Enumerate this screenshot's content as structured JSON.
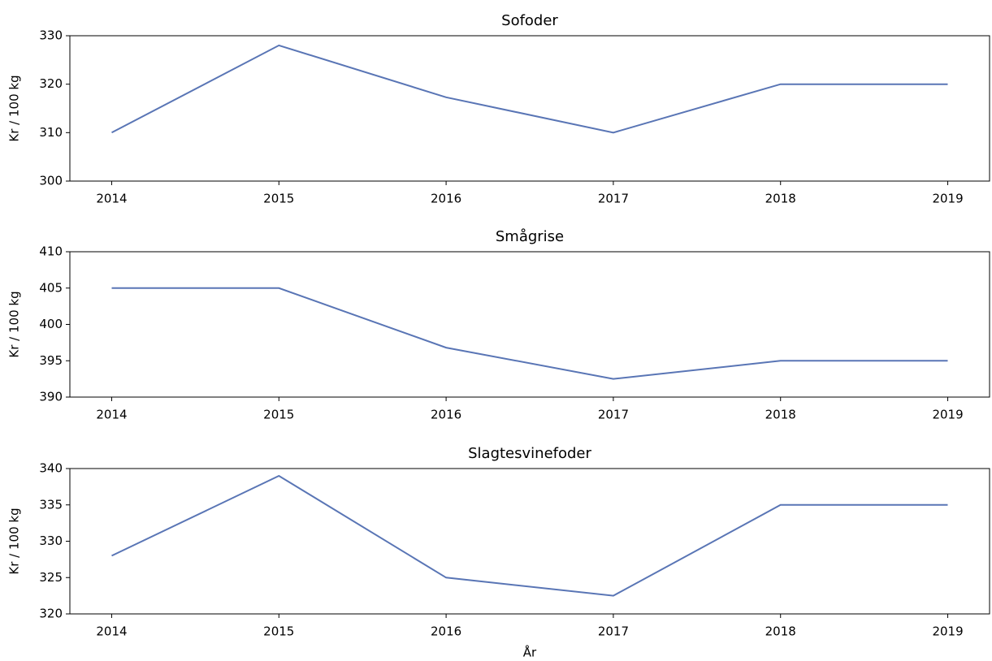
{
  "chart_data": [
    {
      "type": "line",
      "title": "Sofoder",
      "ylabel": "Kr / 100 kg",
      "x": [
        2014,
        2015,
        2016,
        2017,
        2018,
        2019
      ],
      "values": [
        310,
        328,
        317.3,
        310,
        320,
        320
      ],
      "color": "#5975b5",
      "xlim": [
        2013.75,
        2019.25
      ],
      "xticks": [
        2014,
        2015,
        2016,
        2017,
        2018,
        2019
      ],
      "ylim": [
        300,
        330
      ],
      "yticks": [
        300,
        310,
        320,
        330
      ]
    },
    {
      "type": "line",
      "title": "Smågrise",
      "ylabel": "Kr / 100 kg",
      "x": [
        2014,
        2015,
        2016,
        2017,
        2018,
        2019
      ],
      "values": [
        405,
        405,
        396.8,
        392.5,
        395,
        395
      ],
      "color": "#5975b5",
      "xlim": [
        2013.75,
        2019.25
      ],
      "xticks": [
        2014,
        2015,
        2016,
        2017,
        2018,
        2019
      ],
      "ylim": [
        390,
        410
      ],
      "yticks": [
        390,
        395,
        400,
        405,
        410
      ]
    },
    {
      "type": "line",
      "title": "Slagtesvinefoder",
      "ylabel": "Kr / 100 kg",
      "xlabel": "År",
      "x": [
        2014,
        2015,
        2016,
        2017,
        2018,
        2019
      ],
      "values": [
        328,
        339,
        325,
        322.5,
        335,
        335
      ],
      "color": "#5975b5",
      "xlim": [
        2013.75,
        2019.25
      ],
      "xticks": [
        2014,
        2015,
        2016,
        2017,
        2018,
        2019
      ],
      "ylim": [
        320,
        340
      ],
      "yticks": [
        320,
        325,
        330,
        335,
        340
      ]
    }
  ]
}
